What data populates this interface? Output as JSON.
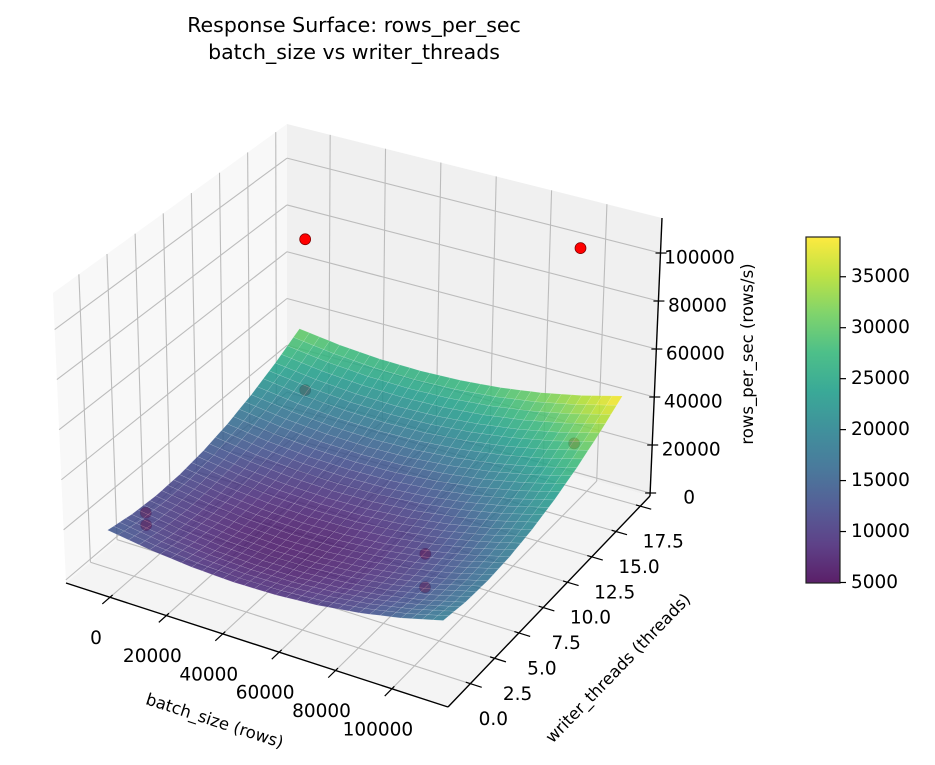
{
  "chart_data": {
    "type": "surface",
    "title": "Response Surface: rows_per_sec",
    "subtitle": "batch_size vs writer_threads",
    "xlabel": "batch_size (rows)",
    "ylabel": "writer_threads (threads)",
    "zlabel": "rows_per_sec (rows/s)",
    "xlim": [
      -15600,
      119900
    ],
    "ylim": [
      -2.3,
      18.5
    ],
    "zlim": [
      -1250,
      114600
    ],
    "grid": true,
    "colormap": "viridis",
    "xticks": [
      0,
      20000,
      40000,
      60000,
      80000,
      100000
    ],
    "xtick_labels": [
      "0",
      "20000",
      "40000",
      "60000",
      "80000",
      "100000"
    ],
    "yticks": [
      0,
      2.5,
      5,
      7.5,
      10,
      12.5,
      15,
      17.5
    ],
    "ytick_labels": [
      "0.0",
      "2.5",
      "5.0",
      "7.5",
      "10.0",
      "12.5",
      "15.0",
      "17.5"
    ],
    "zticks": [
      0,
      20000,
      40000,
      60000,
      80000,
      100000
    ],
    "ztick_labels": [
      "0",
      "20000",
      "40000",
      "60000",
      "80000",
      "100000"
    ],
    "surface": {
      "x": [
        -9000,
        5875,
        20750,
        35625,
        50500,
        65375,
        80250,
        95125,
        110000
      ],
      "y": [
        0,
        2.25,
        4.5,
        6.75,
        9,
        11.25,
        13.5,
        15.75,
        18
      ],
      "z": [
        [
          14000,
          11344,
          9625,
          8844,
          9000,
          10094,
          12125,
          15094,
          19000
        ],
        [
          12185,
          9582,
          7916,
          7188,
          7398,
          8545,
          10629,
          13651,
          17610
        ],
        [
          11496,
          8946,
          7334,
          6659,
          6921,
          8121,
          10259,
          13334,
          17346
        ],
        [
          11933,
          9436,
          7877,
          7255,
          7571,
          8824,
          11014,
          14143,
          18208
        ],
        [
          13495,
          11052,
          9545,
          8977,
          9345,
          10652,
          12895,
          16077,
          20195
        ],
        [
          16183,
          13793,
          12339,
          11824,
          12246,
          13605,
          15902,
          19136,
          23308
        ],
        [
          19996,
          17659,
          16259,
          15796,
          16271,
          17684,
          20034,
          23321,
          27546
        ],
        [
          24935,
          22651,
          21304,
          20895,
          21423,
          22888,
          25291,
          28632,
          32910
        ],
        [
          31000,
          28769,
          27475,
          27119,
          27700,
          29219,
          31675,
          35069,
          39400
        ]
      ]
    },
    "scatter": {
      "x": [
        1000,
        1000,
        100000,
        100000,
        1000,
        1000,
        100000,
        100000
      ],
      "y": [
        1,
        1,
        1,
        1,
        16,
        16,
        16,
        16
      ],
      "z": [
        20800,
        15900,
        37200,
        24600,
        15700,
        79400,
        24600,
        105000
      ],
      "color": "#ff0000"
    },
    "colorbar": {
      "vmin": 4950,
      "vmax": 38900,
      "location": "right",
      "ticks": [
        5000,
        10000,
        15000,
        20000,
        25000,
        30000,
        35000
      ],
      "tick_labels": [
        "5000",
        "10000",
        "15000",
        "20000",
        "25000",
        "30000",
        "35000"
      ]
    }
  }
}
